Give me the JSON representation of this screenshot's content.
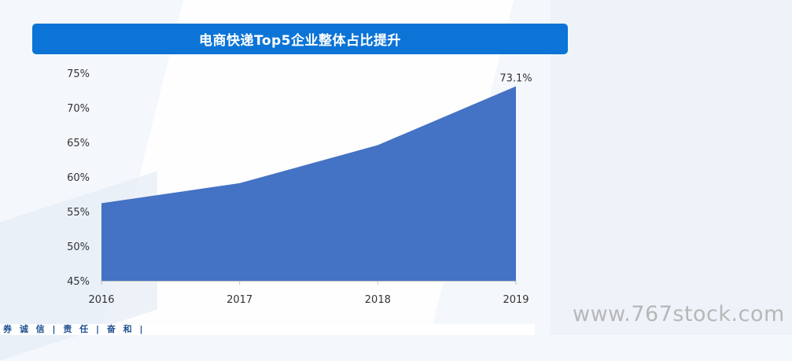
{
  "title": "电商快递Top5企业整体占比提升",
  "footer_slogan": "券  诚 信 | 责 任 | 奋 和 |",
  "watermark": "www.767stock.com",
  "colors": {
    "title_bar": "#0c74d6",
    "area": "#4472c4",
    "axis": "#bfbfbf"
  },
  "chart_data": {
    "type": "area",
    "title": "电商快递Top5企业整体占比提升",
    "xlabel": "",
    "ylabel": "",
    "categories": [
      "2016",
      "2017",
      "2018",
      "2019"
    ],
    "series": [
      {
        "values": [
          56.2,
          59.1,
          64.6,
          73.1
        ]
      }
    ],
    "y_ticks": [
      "45%",
      "50%",
      "55%",
      "60%",
      "65%",
      "70%",
      "75%"
    ],
    "ylim": [
      45,
      75
    ],
    "data_labels": [
      {
        "index": 3,
        "text": "73.1%"
      }
    ],
    "grid": false,
    "legend": "none"
  }
}
